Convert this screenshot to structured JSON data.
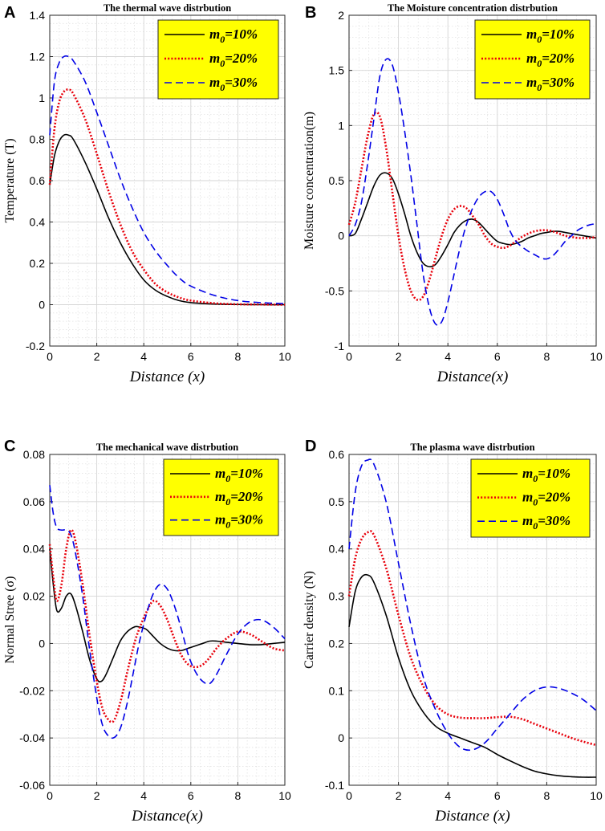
{
  "figure": {
    "line_colors": [
      "#000000",
      "#e8000b",
      "#0000e6"
    ],
    "legend_bg": "#ffff00"
  },
  "chart_data": [
    {
      "type": "line",
      "panel_label": "A",
      "title": "The thermal wave distrbution",
      "xlabel": "Distance (x)",
      "ylabel": "Temperature (T)",
      "xlim": [
        0,
        10
      ],
      "ylim": [
        -0.2,
        1.4
      ],
      "xticks": [
        0,
        2,
        4,
        6,
        8,
        10
      ],
      "yticks": [
        -0.2,
        0,
        0.2,
        0.4,
        0.6,
        0.8,
        1,
        1.2,
        1.4
      ],
      "legend_position": "top-right",
      "x": [
        0,
        0.2,
        0.4,
        0.6,
        0.8,
        1,
        1.5,
        2,
        2.5,
        3,
        3.5,
        4,
        4.5,
        5,
        5.5,
        6,
        7,
        8,
        9,
        10
      ],
      "series": [
        {
          "name": "m0=10%",
          "symbol": "m",
          "sub": "0",
          "tail": "=10%",
          "style": "solid",
          "values": [
            0.58,
            0.72,
            0.79,
            0.82,
            0.82,
            0.8,
            0.69,
            0.56,
            0.42,
            0.3,
            0.2,
            0.12,
            0.07,
            0.04,
            0.02,
            0.01,
            0.003,
            0.001,
            0.0,
            0.0
          ]
        },
        {
          "name": "m0=20%",
          "symbol": "m",
          "sub": "0",
          "tail": "=20%",
          "style": "dotted",
          "values": [
            0.58,
            0.85,
            0.98,
            1.03,
            1.04,
            1.02,
            0.9,
            0.73,
            0.55,
            0.39,
            0.26,
            0.17,
            0.1,
            0.06,
            0.035,
            0.02,
            0.007,
            0.002,
            0.001,
            0.0
          ]
        },
        {
          "name": "m0=30%",
          "symbol": "m",
          "sub": "0",
          "tail": "=30%",
          "style": "dashed",
          "values": [
            0.82,
            1.08,
            1.17,
            1.2,
            1.2,
            1.18,
            1.08,
            0.93,
            0.77,
            0.61,
            0.47,
            0.35,
            0.26,
            0.19,
            0.13,
            0.09,
            0.045,
            0.02,
            0.01,
            0.005
          ]
        }
      ]
    },
    {
      "type": "line",
      "panel_label": "B",
      "title": "The Moisture concentration distrbution",
      "xlabel": "Distance(x)",
      "ylabel": "Moisture concentration(m)",
      "xlim": [
        0,
        10
      ],
      "ylim": [
        -1,
        2
      ],
      "xticks": [
        0,
        2,
        4,
        6,
        8,
        10
      ],
      "yticks": [
        -1,
        -0.5,
        0,
        0.5,
        1,
        1.5,
        2
      ],
      "legend_position": "top-right",
      "x": [
        0,
        0.25,
        0.5,
        0.75,
        1,
        1.25,
        1.5,
        1.75,
        2,
        2.25,
        2.5,
        2.75,
        3,
        3.25,
        3.5,
        3.75,
        4,
        4.25,
        4.5,
        4.75,
        5,
        5.25,
        5.5,
        5.75,
        6,
        6.25,
        6.5,
        6.75,
        7,
        7.25,
        7.5,
        7.75,
        8,
        8.25,
        8.5,
        8.75,
        9,
        9.25,
        9.5,
        9.75,
        10
      ],
      "series": [
        {
          "name": "m0=10%",
          "symbol": "m",
          "sub": "0",
          "tail": "=10%",
          "style": "solid",
          "values": [
            0,
            0.02,
            0.15,
            0.3,
            0.45,
            0.55,
            0.57,
            0.52,
            0.38,
            0.2,
            0.0,
            -0.15,
            -0.25,
            -0.28,
            -0.26,
            -0.18,
            -0.08,
            0.03,
            0.1,
            0.14,
            0.15,
            0.12,
            0.06,
            0.0,
            -0.05,
            -0.07,
            -0.08,
            -0.07,
            -0.05,
            -0.02,
            0.0,
            0.02,
            0.03,
            0.04,
            0.04,
            0.03,
            0.02,
            0.01,
            0.0,
            -0.01,
            -0.02
          ]
        },
        {
          "name": "m0=20%",
          "symbol": "m",
          "sub": "0",
          "tail": "=20%",
          "style": "dotted",
          "values": [
            0.1,
            0.3,
            0.6,
            0.9,
            1.1,
            1.08,
            0.8,
            0.4,
            0.0,
            -0.3,
            -0.5,
            -0.58,
            -0.55,
            -0.4,
            -0.2,
            0.0,
            0.15,
            0.24,
            0.27,
            0.25,
            0.18,
            0.1,
            0.0,
            -0.07,
            -0.1,
            -0.11,
            -0.09,
            -0.05,
            -0.01,
            0.02,
            0.04,
            0.05,
            0.05,
            0.04,
            0.02,
            0.0,
            -0.01,
            -0.02,
            -0.02,
            -0.02,
            -0.01
          ]
        },
        {
          "name": "m0=30%",
          "symbol": "m",
          "sub": "0",
          "tail": "=30%",
          "style": "dashed",
          "values": [
            0,
            0.1,
            0.3,
            0.65,
            1.05,
            1.45,
            1.6,
            1.55,
            1.3,
            0.95,
            0.55,
            0.1,
            -0.35,
            -0.65,
            -0.8,
            -0.78,
            -0.6,
            -0.35,
            -0.1,
            0.1,
            0.25,
            0.35,
            0.4,
            0.4,
            0.33,
            0.2,
            0.05,
            -0.05,
            -0.1,
            -0.14,
            -0.17,
            -0.2,
            -0.21,
            -0.18,
            -0.12,
            -0.05,
            0.0,
            0.05,
            0.08,
            0.1,
            0.11
          ]
        }
      ]
    },
    {
      "type": "line",
      "panel_label": "C",
      "title": "The mechanical wave distrbution",
      "xlabel": "Distance(x)",
      "ylabel": "Normal Stree (σ)",
      "xlim": [
        0,
        10
      ],
      "ylim": [
        -0.06,
        0.08
      ],
      "xticks": [
        0,
        2,
        4,
        6,
        8,
        10
      ],
      "yticks": [
        -0.06,
        -0.04,
        -0.02,
        0,
        0.02,
        0.04,
        0.06,
        0.08
      ],
      "legend_position": "top-right",
      "x": [
        0,
        0.15,
        0.3,
        0.5,
        0.7,
        0.9,
        1.1,
        1.4,
        1.7,
        2,
        2.2,
        2.4,
        2.7,
        3,
        3.3,
        3.6,
        3.8,
        4.1,
        4.4,
        4.7,
        5,
        5.3,
        5.6,
        5.9,
        6.2,
        6.5,
        6.8,
        7.1,
        7.5,
        8,
        8.5,
        9,
        9.5,
        10
      ],
      "series": [
        {
          "name": "m0=10%",
          "symbol": "m",
          "sub": "0",
          "tail": "=10%",
          "style": "solid",
          "values": [
            0.04,
            0.025,
            0.014,
            0.015,
            0.02,
            0.021,
            0.016,
            0.005,
            -0.007,
            -0.015,
            -0.016,
            -0.013,
            -0.006,
            0.001,
            0.005,
            0.007,
            0.007,
            0.006,
            0.003,
            0.0,
            -0.002,
            -0.003,
            -0.003,
            -0.002,
            -0.001,
            0.0,
            0.001,
            0.001,
            0.0005,
            0.0,
            -0.0005,
            -0.0005,
            0.0,
            0.0005
          ]
        },
        {
          "name": "m0=20%",
          "symbol": "m",
          "sub": "0",
          "tail": "=20%",
          "style": "dotted",
          "values": [
            0.042,
            0.028,
            0.018,
            0.025,
            0.04,
            0.048,
            0.043,
            0.025,
            0.003,
            -0.016,
            -0.026,
            -0.031,
            -0.033,
            -0.025,
            -0.012,
            0.0,
            0.006,
            0.013,
            0.018,
            0.016,
            0.01,
            0.002,
            -0.005,
            -0.009,
            -0.01,
            -0.009,
            -0.006,
            -0.002,
            0.002,
            0.005,
            0.004,
            0.001,
            -0.002,
            -0.003
          ]
        },
        {
          "name": "m0=30%",
          "symbol": "m",
          "sub": "0",
          "tail": "=30%",
          "style": "dashed",
          "values": [
            0.067,
            0.055,
            0.049,
            0.048,
            0.048,
            0.046,
            0.038,
            0.02,
            -0.003,
            -0.023,
            -0.033,
            -0.038,
            -0.04,
            -0.036,
            -0.025,
            -0.01,
            0.0,
            0.012,
            0.021,
            0.025,
            0.023,
            0.016,
            0.006,
            -0.005,
            -0.012,
            -0.016,
            -0.017,
            -0.013,
            -0.005,
            0.004,
            0.009,
            0.01,
            0.007,
            0.002
          ]
        }
      ]
    },
    {
      "type": "line",
      "panel_label": "D",
      "title": "The plasma wave distrbution",
      "xlabel": "Distance (x)",
      "ylabel": "Carrier density (N)",
      "xlim": [
        0,
        10
      ],
      "ylim": [
        -0.1,
        0.6
      ],
      "xticks": [
        0,
        2,
        4,
        6,
        8,
        10
      ],
      "yticks": [
        -0.1,
        0,
        0.1,
        0.2,
        0.3,
        0.4,
        0.5,
        0.6
      ],
      "legend_position": "top-right",
      "x": [
        0,
        0.25,
        0.5,
        0.75,
        1,
        1.5,
        2,
        2.5,
        3,
        3.5,
        4,
        4.5,
        5,
        5.5,
        6,
        6.5,
        7,
        7.5,
        8,
        8.5,
        9,
        9.5,
        10
      ],
      "series": [
        {
          "name": "m0=10%",
          "symbol": "m",
          "sub": "0",
          "tail": "=10%",
          "style": "solid",
          "values": [
            0.235,
            0.31,
            0.34,
            0.345,
            0.33,
            0.26,
            0.17,
            0.1,
            0.055,
            0.025,
            0.01,
            0.0,
            -0.01,
            -0.02,
            -0.035,
            -0.048,
            -0.06,
            -0.07,
            -0.076,
            -0.08,
            -0.082,
            -0.083,
            -0.083
          ]
        },
        {
          "name": "m0=20%",
          "symbol": "m",
          "sub": "0",
          "tail": "=20%",
          "style": "dotted",
          "values": [
            0.3,
            0.38,
            0.42,
            0.435,
            0.43,
            0.36,
            0.26,
            0.17,
            0.11,
            0.07,
            0.05,
            0.043,
            0.042,
            0.042,
            0.044,
            0.045,
            0.04,
            0.03,
            0.02,
            0.01,
            0.0,
            -0.008,
            -0.015
          ]
        },
        {
          "name": "m0=30%",
          "symbol": "m",
          "sub": "0",
          "tail": "=30%",
          "style": "dashed",
          "values": [
            0.4,
            0.52,
            0.575,
            0.588,
            0.58,
            0.5,
            0.37,
            0.24,
            0.13,
            0.06,
            0.01,
            -0.02,
            -0.025,
            -0.01,
            0.02,
            0.05,
            0.08,
            0.1,
            0.108,
            0.105,
            0.095,
            0.08,
            0.058
          ]
        }
      ]
    }
  ]
}
